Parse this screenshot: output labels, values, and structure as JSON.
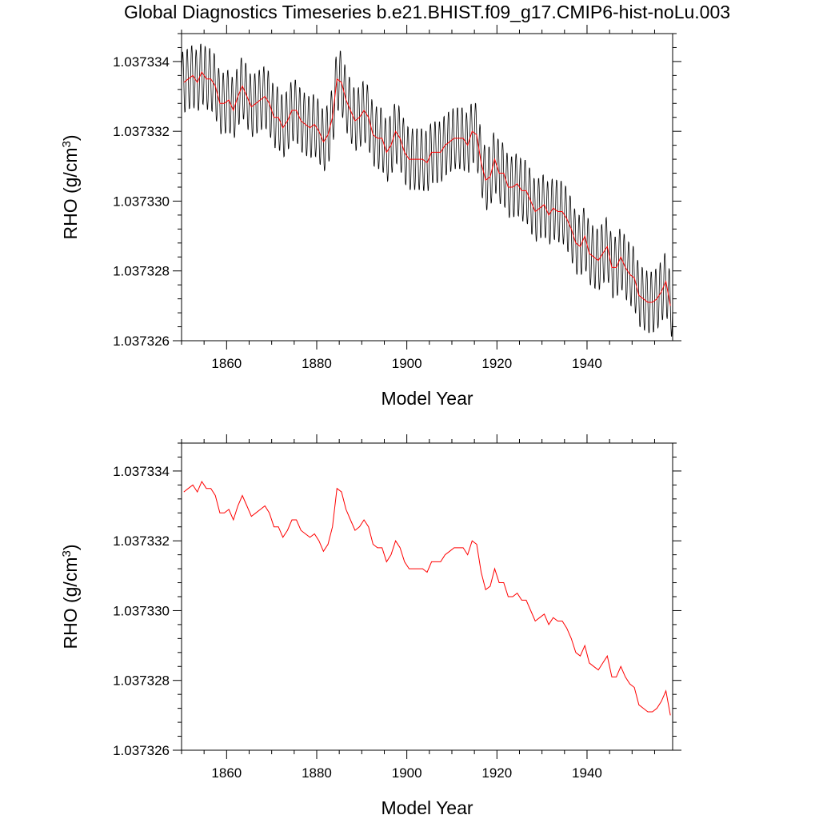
{
  "title": "Global Diagnostics Timeseries b.e21.BHIST.f09_g17.CMIP6-hist-noLu.003",
  "colors": {
    "monthly": "#000000",
    "annual": "#ff0000",
    "axes": "#000000"
  },
  "chart_data": [
    {
      "type": "line",
      "xlabel": "Model Year",
      "ylabel": "RHO (g/cm",
      "ylabel_sup": "3",
      "ylabel_close": ")",
      "xlim": [
        1850,
        1959
      ],
      "ylim": [
        1.037326,
        1.0373348
      ],
      "xticks": [
        1860,
        1880,
        1900,
        1920,
        1940
      ],
      "xtick_labels": [
        "1860",
        "1880",
        "1900",
        "1920",
        "1940"
      ],
      "yticks": [
        1.037326,
        1.037328,
        1.03733,
        1.037332,
        1.037334
      ],
      "ytick_labels": [
        "1.037326",
        "1.037328",
        "1.037330",
        "1.037332",
        "1.037334"
      ],
      "grid": false,
      "series": [
        {
          "kind": "monthly",
          "seasonal_amplitude": 9e-07,
          "peak_month_phase": 0.25
        },
        {
          "kind": "annual",
          "start_year": 1850.5,
          "step": 1,
          "values": [
            1.0373334,
            1.0373335,
            1.0373336,
            1.0373334,
            1.0373337,
            1.0373335,
            1.0373335,
            1.0373333,
            1.0373328,
            1.0373328,
            1.0373329,
            1.0373326,
            1.037333,
            1.0373333,
            1.037333,
            1.0373327,
            1.0373328,
            1.0373329,
            1.037333,
            1.0373328,
            1.0373324,
            1.0373324,
            1.0373321,
            1.0373323,
            1.0373326,
            1.0373326,
            1.0373323,
            1.0373322,
            1.0373321,
            1.0373322,
            1.037332,
            1.0373317,
            1.0373319,
            1.0373324,
            1.0373335,
            1.0373334,
            1.0373329,
            1.0373326,
            1.0373323,
            1.0373324,
            1.0373326,
            1.0373324,
            1.0373319,
            1.0373318,
            1.0373318,
            1.0373314,
            1.0373316,
            1.037332,
            1.0373318,
            1.0373314,
            1.0373312,
            1.0373312,
            1.0373312,
            1.0373312,
            1.0373311,
            1.0373314,
            1.0373314,
            1.0373314,
            1.0373316,
            1.0373317,
            1.0373318,
            1.0373318,
            1.0373318,
            1.0373316,
            1.037332,
            1.0373319,
            1.0373311,
            1.0373306,
            1.0373307,
            1.0373312,
            1.0373308,
            1.0373308,
            1.0373304,
            1.0373304,
            1.0373305,
            1.0373303,
            1.0373303,
            1.03733,
            1.0373297,
            1.0373298,
            1.0373299,
            1.0373296,
            1.0373298,
            1.0373297,
            1.0373297,
            1.0373295,
            1.0373292,
            1.0373288,
            1.0373287,
            1.037329,
            1.0373285,
            1.0373284,
            1.0373283,
            1.0373285,
            1.0373287,
            1.0373281,
            1.0373281,
            1.0373284,
            1.0373281,
            1.0373279,
            1.0373278,
            1.0373273,
            1.0373272,
            1.0373271,
            1.0373271,
            1.0373272,
            1.0373274,
            1.0373277,
            1.037327
          ]
        }
      ]
    },
    {
      "type": "line",
      "xlabel": "Model Year",
      "ylabel": "RHO (g/cm",
      "ylabel_sup": "3",
      "ylabel_close": ")",
      "xlim": [
        1850,
        1959
      ],
      "ylim": [
        1.037326,
        1.0373348
      ],
      "xticks": [
        1860,
        1880,
        1900,
        1920,
        1940
      ],
      "xtick_labels": [
        "1860",
        "1880",
        "1900",
        "1920",
        "1940"
      ],
      "yticks": [
        1.037326,
        1.037328,
        1.03733,
        1.037332,
        1.037334
      ],
      "ytick_labels": [
        "1.037326",
        "1.037328",
        "1.037330",
        "1.037332",
        "1.037334"
      ],
      "grid": false,
      "series": [
        {
          "kind": "annual",
          "start_year": 1850.5,
          "step": 1,
          "values": [
            1.0373334,
            1.0373335,
            1.0373336,
            1.0373334,
            1.0373337,
            1.0373335,
            1.0373335,
            1.0373333,
            1.0373328,
            1.0373328,
            1.0373329,
            1.0373326,
            1.037333,
            1.0373333,
            1.037333,
            1.0373327,
            1.0373328,
            1.0373329,
            1.037333,
            1.0373328,
            1.0373324,
            1.0373324,
            1.0373321,
            1.0373323,
            1.0373326,
            1.0373326,
            1.0373323,
            1.0373322,
            1.0373321,
            1.0373322,
            1.037332,
            1.0373317,
            1.0373319,
            1.0373324,
            1.0373335,
            1.0373334,
            1.0373329,
            1.0373326,
            1.0373323,
            1.0373324,
            1.0373326,
            1.0373324,
            1.0373319,
            1.0373318,
            1.0373318,
            1.0373314,
            1.0373316,
            1.037332,
            1.0373318,
            1.0373314,
            1.0373312,
            1.0373312,
            1.0373312,
            1.0373312,
            1.0373311,
            1.0373314,
            1.0373314,
            1.0373314,
            1.0373316,
            1.0373317,
            1.0373318,
            1.0373318,
            1.0373318,
            1.0373316,
            1.037332,
            1.0373319,
            1.0373311,
            1.0373306,
            1.0373307,
            1.0373312,
            1.0373308,
            1.0373308,
            1.0373304,
            1.0373304,
            1.0373305,
            1.0373303,
            1.0373303,
            1.03733,
            1.0373297,
            1.0373298,
            1.0373299,
            1.0373296,
            1.0373298,
            1.0373297,
            1.0373297,
            1.0373295,
            1.0373292,
            1.0373288,
            1.0373287,
            1.037329,
            1.0373285,
            1.0373284,
            1.0373283,
            1.0373285,
            1.0373287,
            1.0373281,
            1.0373281,
            1.0373284,
            1.0373281,
            1.0373279,
            1.0373278,
            1.0373273,
            1.0373272,
            1.0373271,
            1.0373271,
            1.0373272,
            1.0373274,
            1.0373277,
            1.037327
          ]
        }
      ]
    }
  ]
}
